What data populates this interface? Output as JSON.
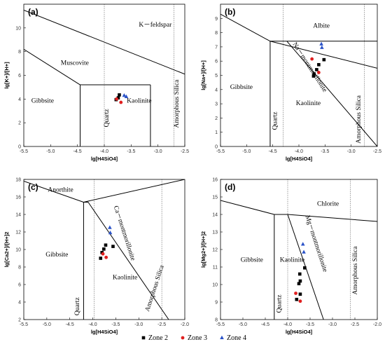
{
  "legend": [
    {
      "name": "Zone 2",
      "color": "#000000",
      "marker": "square"
    },
    {
      "name": "Zone 3",
      "color": "#e02020",
      "marker": "circle"
    },
    {
      "name": "Zone 4",
      "color": "#2a52c8",
      "marker": "triangle"
    }
  ],
  "chart_data": [
    {
      "type": "scatter",
      "panel": "(a)",
      "xlabel": "lg[H4SiO4]",
      "ylabel": "lg[K+]/[H+]",
      "xlim": [
        -5.5,
        -2.5
      ],
      "ylim": [
        0,
        12
      ],
      "xticks": [
        -5.5,
        -5.0,
        -4.5,
        -4.0,
        -3.5,
        -3.0,
        -2.5
      ],
      "yticks": [
        0,
        2,
        4,
        6,
        8,
        10
      ],
      "grid": false,
      "boundaries": [
        [
          [
            -5.5,
            11.5
          ],
          [
            -2.5,
            6.1
          ]
        ],
        [
          [
            -5.5,
            8.2
          ],
          [
            -4.45,
            5.2
          ]
        ],
        [
          [
            -4.45,
            5.2
          ],
          [
            -4.45,
            0
          ]
        ],
        [
          [
            -4.45,
            5.2
          ],
          [
            -3.14,
            5.2
          ]
        ],
        [
          [
            -3.14,
            5.2
          ],
          [
            -3.14,
            0
          ]
        ]
      ],
      "dotted": [
        -4.0,
        -2.7
      ],
      "fields": [
        {
          "name": "K－feldspar",
          "x": -3.05,
          "y": 10.1
        },
        {
          "name": "Muscovite",
          "x": -4.55,
          "y": 6.9
        },
        {
          "name": "Gibbsite",
          "x": -5.15,
          "y": 3.7
        },
        {
          "name": "Kaolinite",
          "x": -3.35,
          "y": 3.7
        },
        {
          "name": "Quartz",
          "x": -3.92,
          "y": 2.4,
          "rotate": -90
        },
        {
          "name": "Amorphous Silica",
          "x": -2.62,
          "y": 3.6,
          "rotate": -90
        }
      ],
      "series": [
        {
          "name": "Zone 2",
          "points": [
            [
              -3.74,
              4.1
            ],
            [
              -3.72,
              4.35
            ],
            [
              -3.78,
              3.95
            ]
          ]
        },
        {
          "name": "Zone 3",
          "points": [
            [
              -3.77,
              4.0
            ],
            [
              -3.69,
              3.72
            ]
          ]
        },
        {
          "name": "Zone 4",
          "points": [
            [
              -3.63,
              4.3
            ],
            [
              -3.59,
              4.2
            ]
          ]
        }
      ]
    },
    {
      "type": "scatter",
      "panel": "(b)",
      "xlabel": "lg[H4SiO4]",
      "ylabel": "lg[Na+]/[H+]",
      "xlim": [
        -5.5,
        -2.5
      ],
      "ylim": [
        0,
        10
      ],
      "xticks": [
        -5.5,
        -5.0,
        -4.5,
        -4.0,
        -3.5,
        -3.0,
        -2.5
      ],
      "yticks": [
        0,
        1,
        2,
        3,
        4,
        5,
        6,
        7,
        8,
        9
      ],
      "grid": false,
      "boundaries": [
        [
          [
            -5.5,
            9.3
          ],
          [
            -4.55,
            7.4
          ]
        ],
        [
          [
            -4.55,
            7.4
          ],
          [
            -2.5,
            5.5
          ]
        ],
        [
          [
            -4.55,
            7.4
          ],
          [
            -4.55,
            0
          ]
        ],
        [
          [
            -4.55,
            7.4
          ],
          [
            -4.23,
            7.4
          ]
        ],
        [
          [
            -4.23,
            7.4
          ],
          [
            -2.5,
            0
          ]
        ],
        [
          [
            -4.23,
            7.4
          ],
          [
            -2.5,
            7.4
          ]
        ]
      ],
      "dotted": [
        -4.3,
        -2.75
      ],
      "fields": [
        {
          "name": "Albite",
          "x": -3.57,
          "y": 8.35
        },
        {
          "name": "Gibbsite",
          "x": -5.1,
          "y": 4.05
        },
        {
          "name": "Kaolinite",
          "x": -3.82,
          "y": 2.9
        },
        {
          "name": "Na－montmorillonite",
          "x": -3.82,
          "y": 5.5,
          "rotate": 57
        },
        {
          "name": "Quartz",
          "x": -4.42,
          "y": 1.8,
          "rotate": -90
        },
        {
          "name": "Amorphous Silica",
          "x": -2.82,
          "y": 1.9,
          "rotate": -90
        }
      ],
      "series": [
        {
          "name": "Zone 2",
          "points": [
            [
              -3.52,
              6.1
            ],
            [
              -3.62,
              5.75
            ],
            [
              -3.66,
              5.4
            ],
            [
              -3.71,
              5.1
            ],
            [
              -3.72,
              4.95
            ]
          ]
        },
        {
          "name": "Zone 3",
          "points": [
            [
              -3.75,
              6.15
            ],
            [
              -3.62,
              5.2
            ]
          ]
        },
        {
          "name": "Zone 4",
          "points": [
            [
              -3.57,
              7.2
            ],
            [
              -3.56,
              6.95
            ]
          ]
        }
      ]
    },
    {
      "type": "scatter",
      "panel": "(c)",
      "xlabel": "lg[H4SiO4]",
      "ylabel": "lg[Ca2+]/[H+]2",
      "xlim": [
        -5.5,
        -2.0
      ],
      "ylim": [
        2,
        18
      ],
      "xticks": [
        -5.5,
        -5.0,
        -4.5,
        -4.0,
        -3.5,
        -3.0,
        -2.5,
        -2.0
      ],
      "yticks": [
        2,
        4,
        6,
        8,
        10,
        12,
        14,
        16,
        18
      ],
      "grid": false,
      "boundaries": [
        [
          [
            -5.5,
            17.8
          ],
          [
            -4.2,
            15.4
          ]
        ],
        [
          [
            -4.2,
            15.4
          ],
          [
            -2.0,
            18.0
          ]
        ],
        [
          [
            -4.2,
            15.4
          ],
          [
            -4.2,
            2
          ]
        ],
        [
          [
            -4.2,
            15.4
          ],
          [
            -4.1,
            15.4
          ]
        ],
        [
          [
            -4.1,
            15.4
          ],
          [
            -2.35,
            2
          ]
        ]
      ],
      "dotted": [
        -3.97,
        -2.5
      ],
      "fields": [
        {
          "name": "Anorthite",
          "x": -4.7,
          "y": 16.6
        },
        {
          "name": "Gibbsite",
          "x": -4.78,
          "y": 9.2
        },
        {
          "name": "Kaolinite",
          "x": -3.3,
          "y": 6.6
        },
        {
          "name": "Ca－montmorillonite",
          "x": -3.35,
          "y": 11.8,
          "rotate": 72
        },
        {
          "name": "Quartz",
          "x": -4.3,
          "y": 3.5,
          "rotate": -90
        },
        {
          "name": "Amorphous Silica",
          "x": -2.62,
          "y": 5.5,
          "rotate": -72
        }
      ],
      "series": [
        {
          "name": "Zone 2",
          "points": [
            [
              -3.56,
              10.35
            ],
            [
              -3.72,
              10.5
            ],
            [
              -3.76,
              10.05
            ],
            [
              -3.8,
              9.65
            ],
            [
              -3.83,
              9.0
            ]
          ]
        },
        {
          "name": "Zone 3",
          "points": [
            [
              -3.78,
              9.5
            ],
            [
              -3.71,
              9.1
            ]
          ]
        },
        {
          "name": "Zone 4",
          "points": [
            [
              -3.63,
              12.5
            ],
            [
              -3.62,
              11.9
            ]
          ]
        }
      ]
    },
    {
      "type": "scatter",
      "panel": "(d)",
      "xlabel": "lg[H4SiO4]",
      "ylabel": "lg[Mg2+]/[H+]2",
      "xlim": [
        -5.5,
        -2.0
      ],
      "ylim": [
        8,
        16
      ],
      "xticks": [
        -5.5,
        -5.0,
        -4.5,
        -4.0,
        -3.5,
        -3.0,
        -2.5,
        -2.0
      ],
      "yticks": [
        8,
        9,
        10,
        11,
        12,
        13,
        14,
        15,
        16
      ],
      "grid": false,
      "boundaries": [
        [
          [
            -5.5,
            14.8
          ],
          [
            -4.3,
            14.0
          ]
        ],
        [
          [
            -4.3,
            14.0
          ],
          [
            -4.0,
            14.0
          ]
        ],
        [
          [
            -4.0,
            14.0
          ],
          [
            -2.0,
            13.6
          ]
        ],
        [
          [
            -4.3,
            14.0
          ],
          [
            -4.3,
            8
          ]
        ],
        [
          [
            -4.0,
            14.0
          ],
          [
            -3.2,
            8
          ]
        ]
      ],
      "dotted": [
        -4.0,
        -2.6
      ],
      "fields": [
        {
          "name": "Chlorite",
          "x": -3.1,
          "y": 14.5
        },
        {
          "name": "Gibbsite",
          "x": -4.8,
          "y": 11.3
        },
        {
          "name": "Kaolinite",
          "x": -3.9,
          "y": 11.3
        },
        {
          "name": "Mg－montmorillonite",
          "x": -3.4,
          "y": 12.3,
          "rotate": 72
        },
        {
          "name": "Quartz",
          "x": -4.15,
          "y": 8.9,
          "rotate": -90
        },
        {
          "name": "Amorphous Silica",
          "x": -2.45,
          "y": 10.8,
          "rotate": -90
        }
      ],
      "series": [
        {
          "name": "Zone 2",
          "points": [
            [
              -3.62,
              10.95
            ],
            [
              -3.73,
              10.6
            ],
            [
              -3.72,
              10.2
            ],
            [
              -3.75,
              10.05
            ],
            [
              -3.72,
              9.45
            ],
            [
              -3.8,
              9.15
            ]
          ]
        },
        {
          "name": "Zone 3",
          "points": [
            [
              -3.82,
              9.5
            ],
            [
              -3.72,
              9.05
            ]
          ]
        },
        {
          "name": "Zone 4",
          "points": [
            [
              -3.66,
              12.3
            ],
            [
              -3.64,
              11.85
            ]
          ]
        }
      ]
    }
  ]
}
